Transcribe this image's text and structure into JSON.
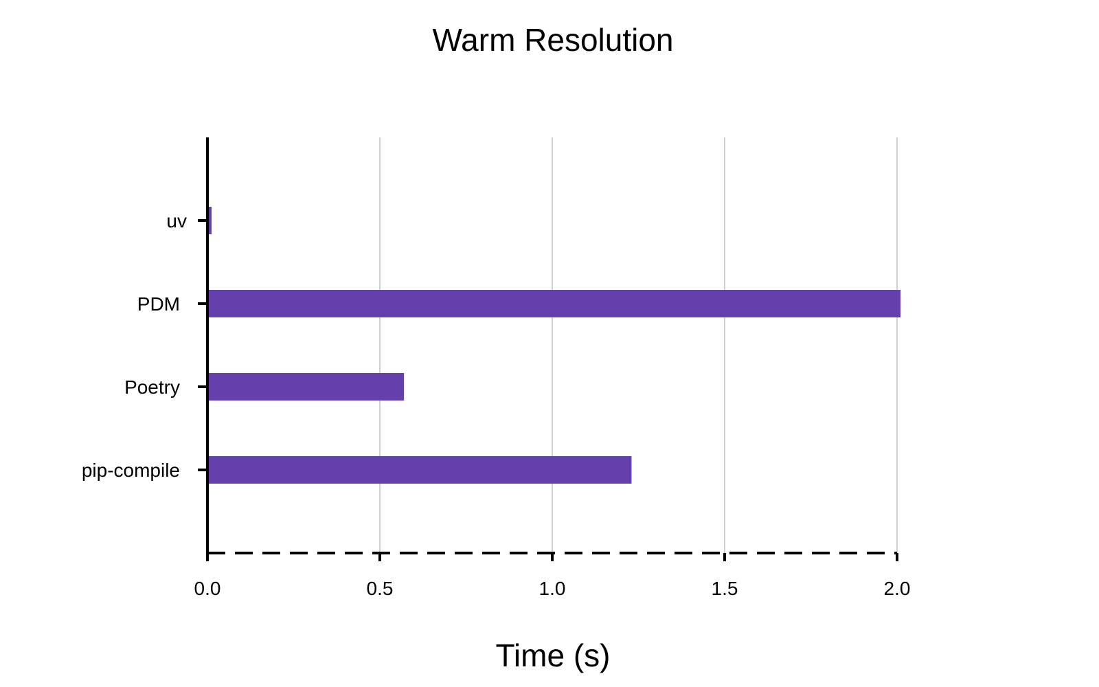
{
  "chart_data": {
    "type": "bar",
    "orientation": "horizontal",
    "title": "Warm Resolution",
    "xlabel": "Time (s)",
    "ylabel": "",
    "categories": [
      "uv",
      "PDM",
      "Poetry",
      "pip-compile"
    ],
    "values": [
      0.01,
      2.01,
      0.57,
      1.23
    ],
    "xlim": [
      0,
      2.0
    ],
    "xticks": [
      0.0,
      0.5,
      1.0,
      1.5,
      2.0
    ],
    "xtick_labels": [
      "0.0",
      "0.5",
      "1.0",
      "1.5",
      "2.0"
    ],
    "grid": "vertical",
    "legend": "none",
    "colors": {
      "bar": "#6340ac",
      "grid": "#a0a0a0",
      "axis": "#000000",
      "text": "#000000"
    }
  }
}
